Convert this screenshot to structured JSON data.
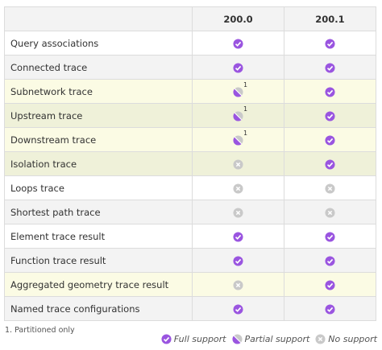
{
  "table": {
    "columns": [
      "200.0",
      "200.1"
    ],
    "rows": [
      {
        "label": "Query associations",
        "background": "#ffffff",
        "cells": [
          {
            "status": "full"
          },
          {
            "status": "full"
          }
        ]
      },
      {
        "label": "Connected trace",
        "background": "#f3f3f3",
        "cells": [
          {
            "status": "full"
          },
          {
            "status": "full"
          }
        ]
      },
      {
        "label": "Subnetwork trace",
        "background": "#fbfbe4",
        "cells": [
          {
            "status": "partial",
            "note": "1"
          },
          {
            "status": "full"
          }
        ]
      },
      {
        "label": "Upstream trace",
        "background": "#eff1d9",
        "cells": [
          {
            "status": "partial",
            "note": "1"
          },
          {
            "status": "full"
          }
        ]
      },
      {
        "label": "Downstream trace",
        "background": "#fbfbe4",
        "cells": [
          {
            "status": "partial",
            "note": "1"
          },
          {
            "status": "full"
          }
        ]
      },
      {
        "label": "Isolation trace",
        "background": "#eff1d9",
        "cells": [
          {
            "status": "none"
          },
          {
            "status": "full"
          }
        ]
      },
      {
        "label": "Loops trace",
        "background": "#ffffff",
        "cells": [
          {
            "status": "none"
          },
          {
            "status": "none"
          }
        ]
      },
      {
        "label": "Shortest path trace",
        "background": "#f3f3f3",
        "cells": [
          {
            "status": "none"
          },
          {
            "status": "none"
          }
        ]
      },
      {
        "label": "Element trace result",
        "background": "#ffffff",
        "cells": [
          {
            "status": "full"
          },
          {
            "status": "full"
          }
        ]
      },
      {
        "label": "Function trace result",
        "background": "#f3f3f3",
        "cells": [
          {
            "status": "full"
          },
          {
            "status": "full"
          }
        ]
      },
      {
        "label": "Aggregated geometry trace result",
        "background": "#fbfbe4",
        "cells": [
          {
            "status": "none"
          },
          {
            "status": "full"
          }
        ]
      },
      {
        "label": "Named trace configurations",
        "background": "#f3f3f3",
        "cells": [
          {
            "status": "full"
          },
          {
            "status": "full"
          }
        ]
      }
    ]
  },
  "footnote": "1. Partitioned only",
  "legend": [
    {
      "status": "full",
      "label": "Full support"
    },
    {
      "status": "partial",
      "label": "Partial support"
    },
    {
      "status": "none",
      "label": "No support"
    }
  ]
}
